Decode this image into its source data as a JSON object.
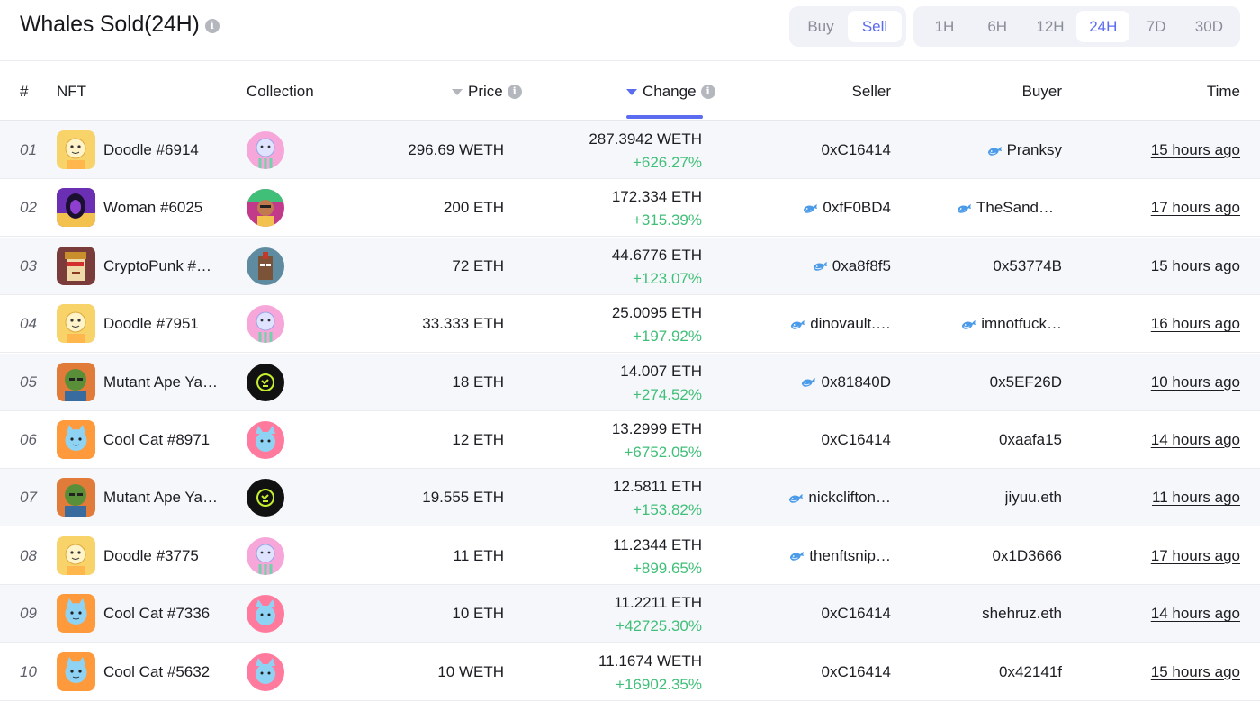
{
  "header": {
    "title": "Whales Sold(24H)",
    "side_options": [
      "Buy",
      "Sell"
    ],
    "side_active": "Sell",
    "time_options": [
      "1H",
      "6H",
      "12H",
      "24H",
      "7D",
      "30D"
    ],
    "time_active": "24H"
  },
  "columns": {
    "rank": "#",
    "nft": "NFT",
    "collection": "Collection",
    "price": "Price",
    "change": "Change",
    "seller": "Seller",
    "buyer": "Buyer",
    "time": "Time"
  },
  "sort": {
    "active_column": "Change"
  },
  "colors": {
    "accent": "#5b6cf0",
    "positive": "#3fbf78",
    "row_alt": "#f6f7fa"
  },
  "rows": [
    {
      "rank": "01",
      "nft": "Doodle #6914",
      "nft_icon": "doodle-avatar-icon",
      "collection_icon": "doodles-collection-icon",
      "price": "296.69 WETH",
      "change_value": "287.3942 WETH",
      "change_pct": "+626.27%",
      "seller": "0xC16414",
      "seller_whale": false,
      "buyer": "Pranksy",
      "buyer_whale": true,
      "time": "15 hours ago"
    },
    {
      "rank": "02",
      "nft": "Woman #6025",
      "nft_icon": "woman-avatar-icon",
      "collection_icon": "world-of-women-collection-icon",
      "price": "200 ETH",
      "change_value": "172.334 ETH",
      "change_pct": "+315.39%",
      "seller": "0xfF0BD4",
      "seller_whale": true,
      "buyer": "TheSandb…",
      "buyer_whale": true,
      "time": "17 hours ago"
    },
    {
      "rank": "03",
      "nft": "CryptoPunk #…",
      "nft_icon": "cryptopunk-avatar-icon",
      "collection_icon": "cryptopunks-collection-icon",
      "price": "72 ETH",
      "change_value": "44.6776 ETH",
      "change_pct": "+123.07%",
      "seller": "0xa8f8f5",
      "seller_whale": true,
      "buyer": "0x53774B",
      "buyer_whale": false,
      "time": "15 hours ago"
    },
    {
      "rank": "04",
      "nft": "Doodle #7951",
      "nft_icon": "doodle-avatar-icon",
      "collection_icon": "doodles-collection-icon",
      "price": "33.333 ETH",
      "change_value": "25.0095 ETH",
      "change_pct": "+197.92%",
      "seller": "dinovault.…",
      "seller_whale": true,
      "buyer": "imnotfuck…",
      "buyer_whale": true,
      "time": "16 hours ago"
    },
    {
      "rank": "05",
      "nft": "Mutant Ape Ya…",
      "nft_icon": "mutant-ape-avatar-icon",
      "collection_icon": "mutant-ape-collection-icon",
      "price": "18 ETH",
      "change_value": "14.007 ETH",
      "change_pct": "+274.52%",
      "seller": "0x81840D",
      "seller_whale": true,
      "buyer": "0x5EF26D",
      "buyer_whale": false,
      "time": "10 hours ago"
    },
    {
      "rank": "06",
      "nft": "Cool Cat #8971",
      "nft_icon": "cool-cat-avatar-icon",
      "collection_icon": "cool-cats-collection-icon",
      "price": "12 ETH",
      "change_value": "13.2999 ETH",
      "change_pct": "+6752.05%",
      "seller": "0xC16414",
      "seller_whale": false,
      "buyer": "0xaafa15",
      "buyer_whale": false,
      "time": "14 hours ago"
    },
    {
      "rank": "07",
      "nft": "Mutant Ape Ya…",
      "nft_icon": "mutant-ape-avatar-icon",
      "collection_icon": "mutant-ape-collection-icon",
      "price": "19.555 ETH",
      "change_value": "12.5811 ETH",
      "change_pct": "+153.82%",
      "seller": "nickclifton…",
      "seller_whale": true,
      "buyer": "jiyuu.eth",
      "buyer_whale": false,
      "time": "11 hours ago"
    },
    {
      "rank": "08",
      "nft": "Doodle #3775",
      "nft_icon": "doodle-avatar-icon",
      "collection_icon": "doodles-collection-icon",
      "price": "11 ETH",
      "change_value": "11.2344 ETH",
      "change_pct": "+899.65%",
      "seller": "thenftsnip…",
      "seller_whale": true,
      "buyer": "0x1D3666",
      "buyer_whale": false,
      "time": "17 hours ago"
    },
    {
      "rank": "09",
      "nft": "Cool Cat #7336",
      "nft_icon": "cool-cat-avatar-icon",
      "collection_icon": "cool-cats-collection-icon",
      "price": "10 ETH",
      "change_value": "11.2211 ETH",
      "change_pct": "+42725.30%",
      "seller": "0xC16414",
      "seller_whale": false,
      "buyer": "shehruz.eth",
      "buyer_whale": false,
      "time": "14 hours ago"
    },
    {
      "rank": "10",
      "nft": "Cool Cat #5632",
      "nft_icon": "cool-cat-avatar-icon",
      "collection_icon": "cool-cats-collection-icon",
      "price": "10 WETH",
      "change_value": "11.1674 WETH",
      "change_pct": "+16902.35%",
      "seller": "0xC16414",
      "seller_whale": false,
      "buyer": "0x42141f",
      "buyer_whale": false,
      "time": "15 hours ago"
    }
  ]
}
